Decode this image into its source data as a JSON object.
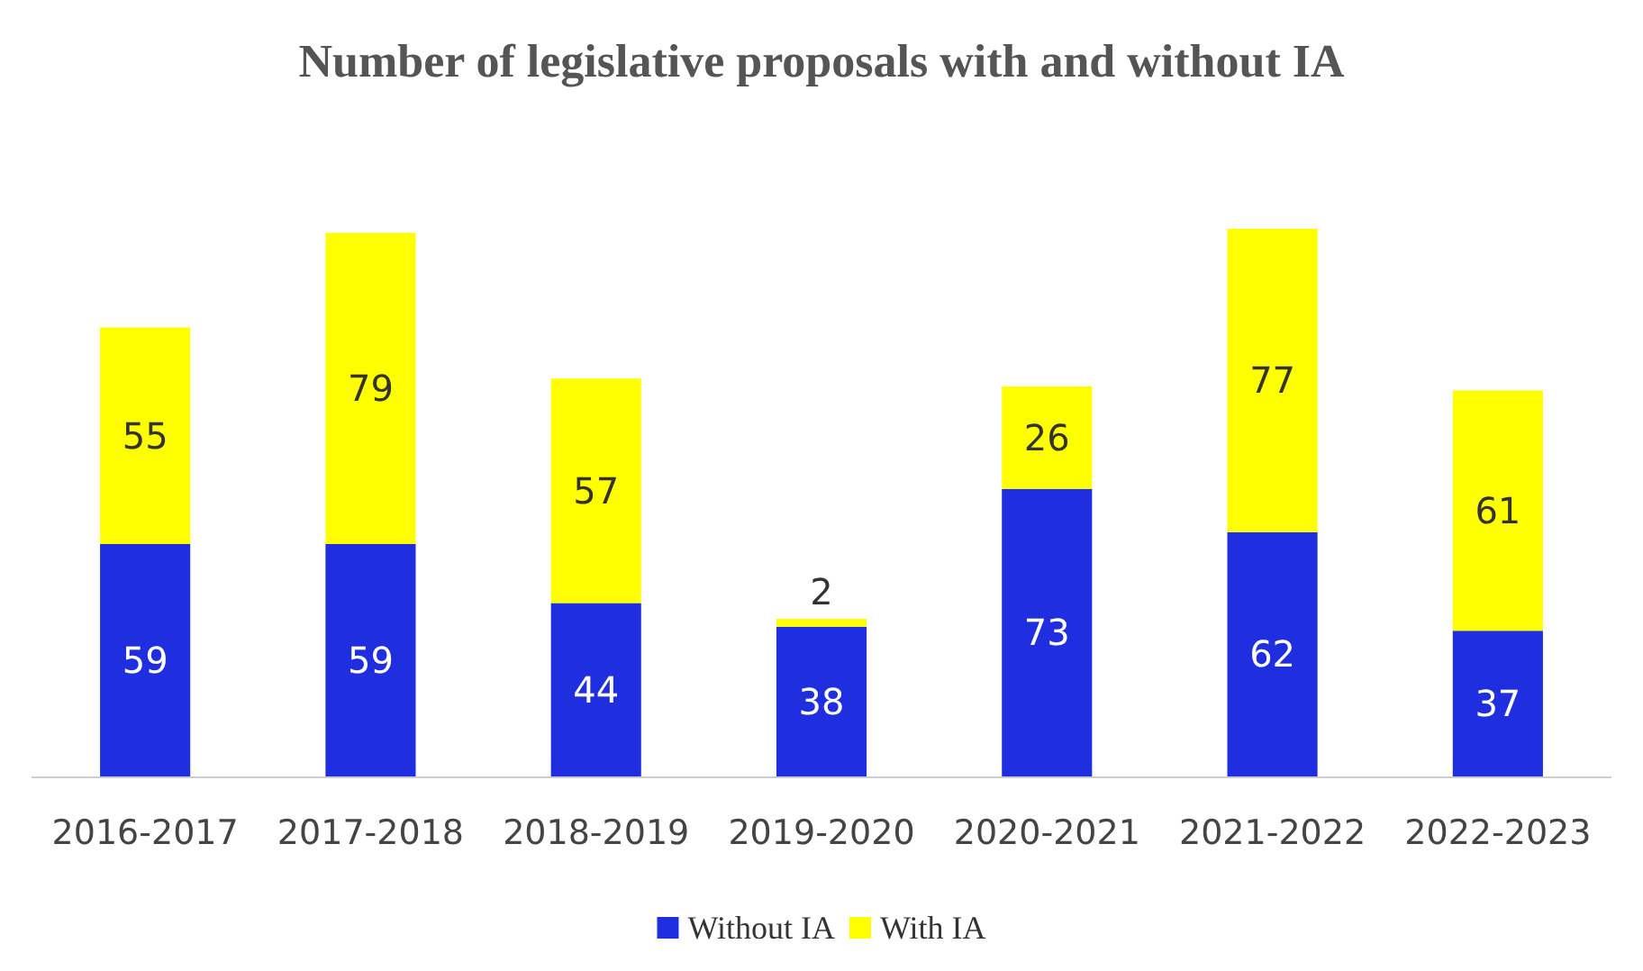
{
  "chart_data": {
    "type": "bar",
    "title": "Number of legislative proposals with and without IA",
    "categories": [
      "2016-2017",
      "2017-2018",
      "2018-2019",
      "2019-2020",
      "2020-2021",
      "2021-2022",
      "2022-2023"
    ],
    "stacked": true,
    "data_labels": true,
    "legend": "bottom",
    "grid": false,
    "series": [
      {
        "name": "Without IA",
        "color": "#1f2fe0",
        "values": [
          59,
          59,
          44,
          38,
          73,
          62,
          37
        ]
      },
      {
        "name": "With IA",
        "color": "#ffff00",
        "values": [
          55,
          79,
          57,
          2,
          26,
          77,
          61
        ]
      }
    ]
  }
}
